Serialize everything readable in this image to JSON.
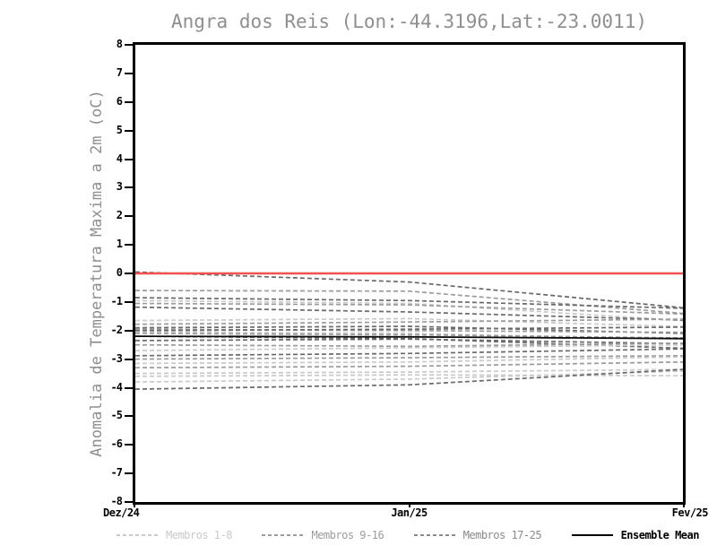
{
  "chart_data": {
    "type": "line",
    "title": "Angra dos Reis (Lon:-44.3196,Lat:-23.0011)",
    "ylabel": "Anomalia de Temperatura Maxima a 2m (oC)",
    "ylim": [
      -8,
      8
    ],
    "yticks": [
      8,
      7,
      6,
      5,
      4,
      3,
      2,
      1,
      0,
      -1,
      -2,
      -3,
      -4,
      -5,
      -6,
      -7,
      -8
    ],
    "categories": [
      "Dez/24",
      "Jan/25",
      "Fev/25"
    ],
    "grid": false,
    "legend_position": "bottom",
    "group_colors": {
      "g1": "#c9c9c9",
      "g2": "#9c9c9c",
      "g3": "#6a6a6a"
    },
    "zero_line": {
      "name": "zero-reference-line",
      "color": "#f54f4f",
      "values": [
        0,
        0,
        0
      ]
    },
    "mean": {
      "name": "Ensemble Mean",
      "color": "#0a0a0a",
      "values": [
        -2.2,
        -2.22,
        -2.28
      ]
    },
    "members": [
      {
        "group": "g3",
        "values": [
          0.05,
          -0.3,
          -1.2
        ]
      },
      {
        "group": "g2",
        "values": [
          -0.6,
          -0.62,
          -1.4
        ]
      },
      {
        "group": "g3",
        "values": [
          -0.85,
          -0.95,
          -1.22
        ]
      },
      {
        "group": "g1",
        "values": [
          -0.95,
          -1.05,
          -1.65
        ]
      },
      {
        "group": "g2",
        "values": [
          -1.05,
          -1.1,
          -1.42
        ]
      },
      {
        "group": "g3",
        "values": [
          -1.18,
          -1.35,
          -1.63
        ]
      },
      {
        "group": "g1",
        "values": [
          -1.65,
          -1.58,
          -1.86
        ]
      },
      {
        "group": "g2",
        "values": [
          -1.78,
          -1.7,
          -1.6
        ]
      },
      {
        "group": "g3",
        "values": [
          -1.9,
          -1.85,
          -2.1
        ]
      },
      {
        "group": "g2",
        "values": [
          -1.95,
          -2.0,
          -2.06
        ]
      },
      {
        "group": "g3",
        "values": [
          -2.0,
          -1.95,
          -1.88
        ]
      },
      {
        "group": "g1",
        "values": [
          -2.05,
          -2.1,
          -2.3
        ]
      },
      {
        "group": "g2",
        "values": [
          -2.1,
          -2.15,
          -2.26
        ]
      },
      {
        "group": "g3",
        "values": [
          -2.2,
          -2.28,
          -2.62
        ]
      },
      {
        "group": "g3",
        "values": [
          -2.35,
          -2.3,
          -2.46
        ]
      },
      {
        "group": "g2",
        "values": [
          -2.5,
          -2.55,
          -2.44
        ]
      },
      {
        "group": "g1",
        "values": [
          -2.7,
          -2.6,
          -2.5
        ]
      },
      {
        "group": "g3",
        "values": [
          -2.88,
          -2.8,
          -2.64
        ]
      },
      {
        "group": "g2",
        "values": [
          -3.0,
          -2.95,
          -2.88
        ]
      },
      {
        "group": "g1",
        "values": [
          -3.15,
          -3.1,
          -2.92
        ]
      },
      {
        "group": "g2",
        "values": [
          -3.3,
          -3.25,
          -3.1
        ]
      },
      {
        "group": "g1",
        "values": [
          -3.5,
          -3.45,
          -3.36
        ]
      },
      {
        "group": "g1",
        "values": [
          -3.6,
          -3.55,
          -3.58
        ]
      },
      {
        "group": "g1",
        "values": [
          -3.8,
          -3.7,
          -3.42
        ]
      },
      {
        "group": "g3",
        "values": [
          -4.05,
          -3.9,
          -3.36
        ]
      }
    ],
    "legend": [
      {
        "label": "Membros 1-8",
        "color": "#c9c9c9",
        "style": "dashed"
      },
      {
        "label": "Membros 9-16",
        "color": "#9c9c9c",
        "style": "dashed"
      },
      {
        "label": "Membros 17-25",
        "color": "#8a8a8a",
        "style": "dashed"
      },
      {
        "label": "Ensemble Mean",
        "color": "#000000",
        "style": "solid"
      }
    ]
  }
}
